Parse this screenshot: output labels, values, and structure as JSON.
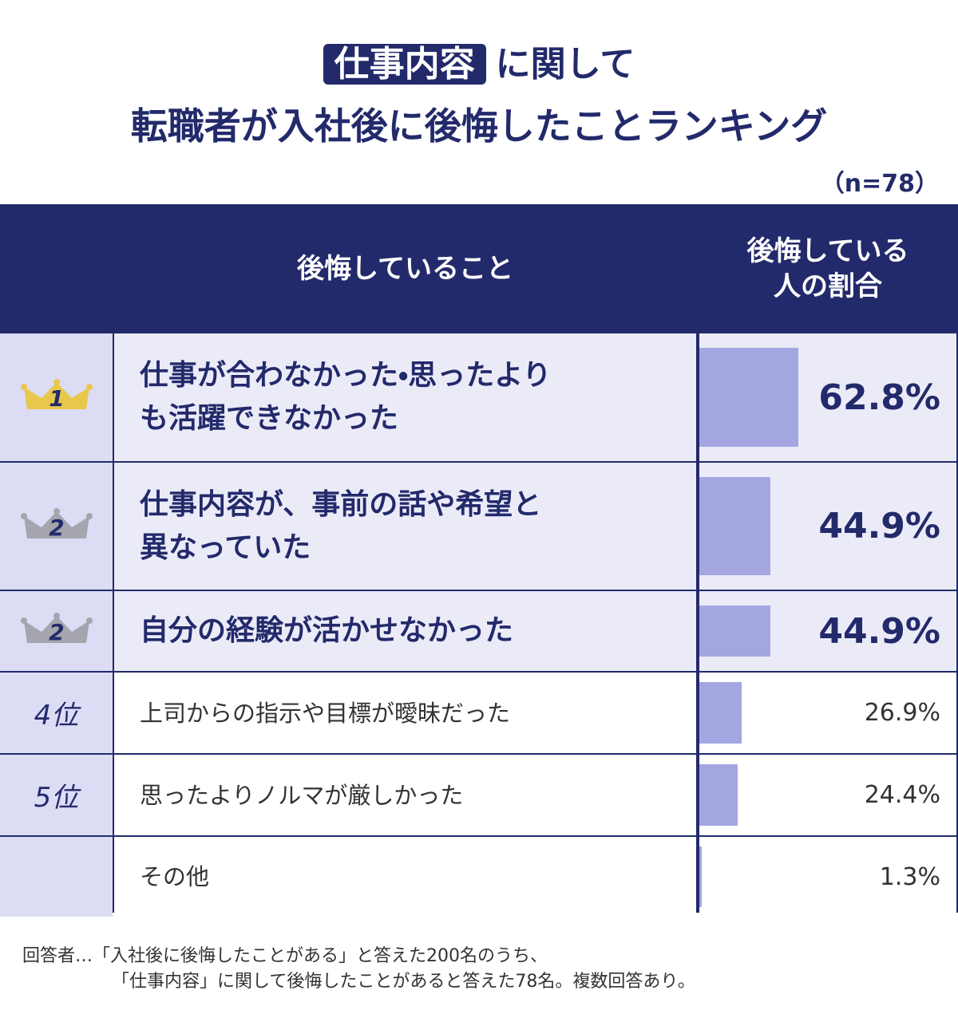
{
  "header": {
    "title_highlight": "仕事内容",
    "title_rest": "に関して",
    "title_line2": "転職者が入社後に後悔したことランキング",
    "sample": "（n=78）"
  },
  "table": {
    "columns": [
      "後悔していること",
      "後悔している\n人の割合"
    ],
    "rows": [
      {
        "rank": "1",
        "item": [
          "仕事が合わなかった・思ったより",
          "も活躍できなかった"
        ],
        "value": 62.8,
        "value_label": "62.8%"
      },
      {
        "rank": "2",
        "item": [
          "仕事内容が、事前の話や希望と",
          "異なっていた"
        ],
        "value": 44.9,
        "value_label": "44.9%"
      },
      {
        "rank": "2",
        "item": [
          "自分の経験が活かせなかった"
        ],
        "value": 44.9,
        "value_label": "44.9%"
      },
      {
        "rank": "4位",
        "item": [
          "上司からの指示や目標が曖昧だった"
        ],
        "value": 26.9,
        "value_label": "26.9%"
      },
      {
        "rank": "5位",
        "item": [
          "思ったよりノルマが厳しかった"
        ],
        "value": 24.4,
        "value_label": "24.4%"
      },
      {
        "item": [
          "その他"
        ],
        "value": 1.3,
        "value_label": "1.3%"
      }
    ]
  },
  "footnote": [
    "回答者…「入社後に後悔したことがある」と答えた200名のうち、",
    "「仕事内容」に関して後悔したことがあると答えた78名。複数回答あり。"
  ]
}
